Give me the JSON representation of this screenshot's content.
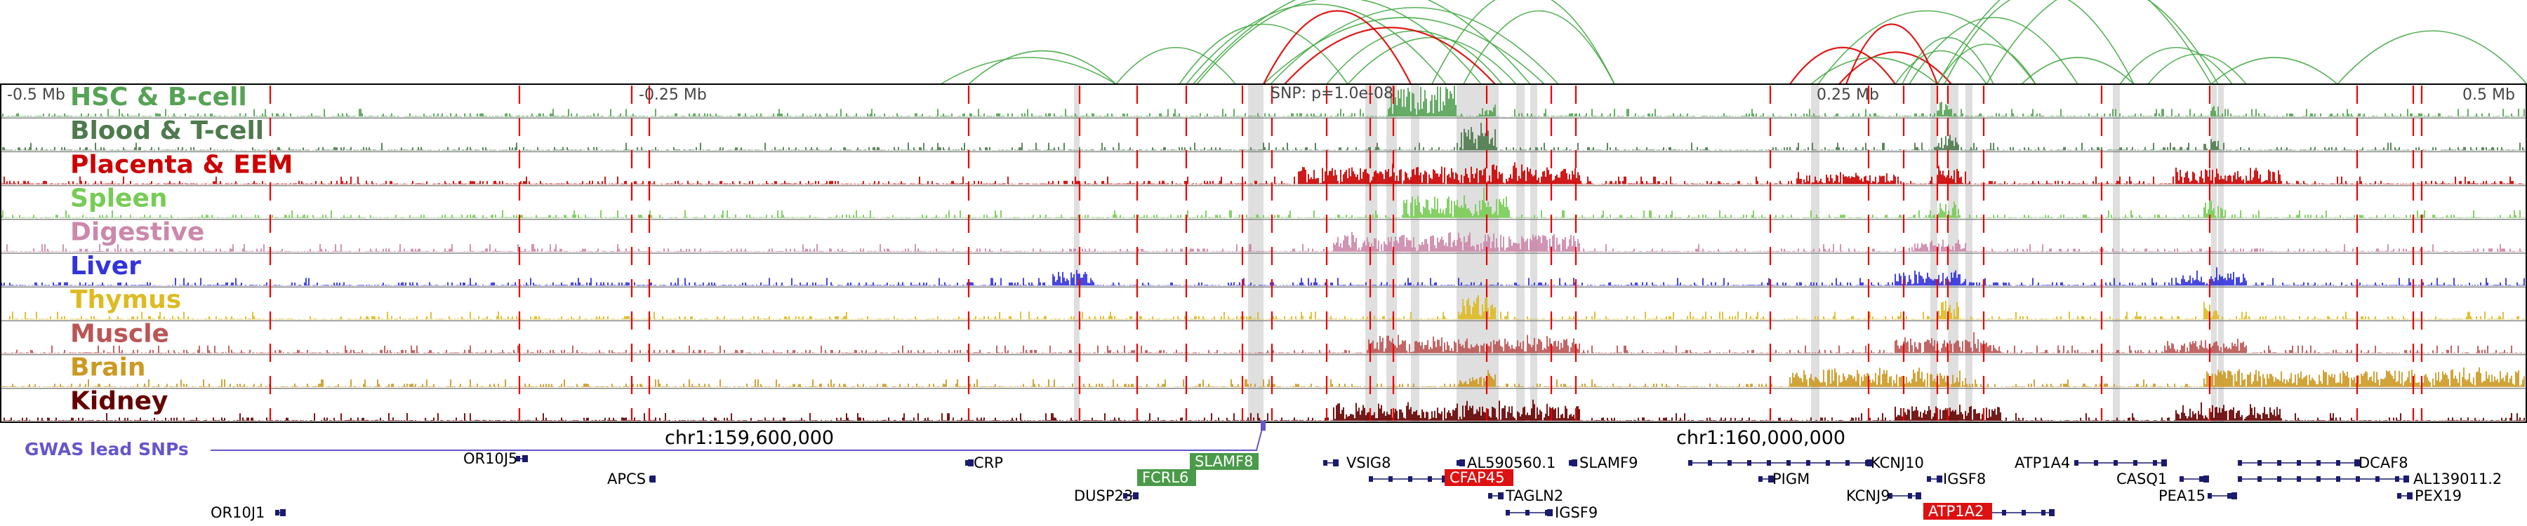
{
  "figure": {
    "scale_left": "-0.5 Mb",
    "scale_mid_left": "-0.25 Mb",
    "scale_mid_right": "0.25 Mb",
    "scale_right": "0.5 Mb",
    "snp_label": "SNP: p=1.0e-08",
    "gwas_label": "GWAS lead SNPs",
    "coord_left": "chr1:159,600,000",
    "coord_right": "chr1:160,000,000"
  },
  "tracks": [
    {
      "name": "HSC & B-cell",
      "color": "#55a355",
      "seed": 11,
      "hot": [
        [
          1980,
          2075,
          1.0
        ],
        [
          2110,
          2130,
          0.3
        ],
        [
          2760,
          2780,
          0.5
        ],
        [
          3150,
          3160,
          0.35
        ]
      ]
    },
    {
      "name": "Blood & T-cell",
      "color": "#4e7a4e",
      "seed": 23,
      "hot": [
        [
          2080,
          2130,
          0.9
        ],
        [
          2760,
          2790,
          0.6
        ],
        [
          3140,
          3160,
          0.3
        ]
      ]
    },
    {
      "name": "Placenta & EEM",
      "color": "#cc0000",
      "seed": 37,
      "hot": [
        [
          1850,
          2250,
          0.55
        ],
        [
          2560,
          2700,
          0.3
        ],
        [
          2760,
          2800,
          0.5
        ],
        [
          3100,
          3250,
          0.45
        ]
      ]
    },
    {
      "name": "Spleen",
      "color": "#77cc55",
      "seed": 41,
      "hot": [
        [
          2000,
          2150,
          0.75
        ],
        [
          2760,
          2790,
          0.55
        ],
        [
          3140,
          3170,
          0.6
        ]
      ]
    },
    {
      "name": "Digestive",
      "color": "#cc88aa",
      "seed": 53,
      "hot": [
        [
          1900,
          2250,
          0.55
        ],
        [
          2720,
          2800,
          0.3
        ]
      ]
    },
    {
      "name": "Liver",
      "color": "#3333dd",
      "seed": 67,
      "hot": [
        [
          1500,
          1560,
          0.45
        ],
        [
          2700,
          2800,
          0.45
        ],
        [
          3100,
          3200,
          0.4
        ]
      ]
    },
    {
      "name": "Thymus",
      "color": "#ddbb22",
      "seed": 71,
      "hot": [
        [
          2080,
          2130,
          0.9
        ],
        [
          2760,
          2790,
          0.6
        ],
        [
          3140,
          3160,
          0.5
        ]
      ]
    },
    {
      "name": "Muscle",
      "color": "#bb5555",
      "seed": 83,
      "hot": [
        [
          1950,
          2250,
          0.5
        ],
        [
          2700,
          2850,
          0.45
        ],
        [
          3080,
          3200,
          0.4
        ]
      ]
    },
    {
      "name": "Brain",
      "color": "#cc9922",
      "seed": 97,
      "hot": [
        [
          2550,
          2800,
          0.55
        ],
        [
          3140,
          3600,
          0.55
        ],
        [
          2080,
          2130,
          0.4
        ]
      ]
    },
    {
      "name": "Kidney",
      "color": "#660000",
      "seed": 101,
      "hot": [
        [
          1900,
          2250,
          0.5
        ],
        [
          2700,
          2850,
          0.45
        ],
        [
          3100,
          3250,
          0.45
        ]
      ]
    }
  ],
  "genes": [
    {
      "name": "OR10J5",
      "label_side": "right",
      "color": "#1a1a6e"
    },
    {
      "name": "APCS",
      "label_side": "left",
      "color": "#1a1a6e"
    },
    {
      "name": "OR10J1",
      "label_side": "left",
      "color": "#1a1a6e"
    },
    {
      "name": "CRP",
      "label_side": "right",
      "color": "#1a1a6e"
    },
    {
      "name": "DUSP23",
      "label_side": "left",
      "color": "#1a1a6e"
    },
    {
      "name": "FCRL6",
      "label_side": "box",
      "color": "#1a1a6e",
      "box_color": "#4a9a4a"
    },
    {
      "name": "SLAMF8",
      "label_side": "box",
      "color": "#1a1a6e",
      "box_color": "#4a9a4a"
    },
    {
      "name": "VSIG8",
      "label_side": "right",
      "color": "#1a1a6e"
    },
    {
      "name": "CFAP45",
      "label_side": "box",
      "color": "#1a1a6e",
      "box_color": "#dd1111"
    },
    {
      "name": "AL590560.1",
      "label_side": "right",
      "color": "#1a1a6e"
    },
    {
      "name": "TAGLN2",
      "label_side": "right",
      "color": "#1a1a6e"
    },
    {
      "name": "IGSF9",
      "label_side": "right",
      "color": "#1a1a6e"
    },
    {
      "name": "SLAMF9",
      "label_side": "right",
      "color": "#1a1a6e"
    },
    {
      "name": "KCNJ10",
      "label_side": "right",
      "color": "#1a1a6e"
    },
    {
      "name": "PIGM",
      "label_side": "right",
      "color": "#1a1a6e"
    },
    {
      "name": "IGSF8",
      "label_side": "right",
      "color": "#1a1a6e"
    },
    {
      "name": "KCNJ9",
      "label_side": "left",
      "color": "#1a1a6e"
    },
    {
      "name": "ATP1A2",
      "label_side": "box",
      "color": "#1a1a6e",
      "box_color": "#dd1111"
    },
    {
      "name": "ATP1A4",
      "label_side": "left",
      "color": "#1a1a6e"
    },
    {
      "name": "CASQ1",
      "label_side": "left",
      "color": "#1a1a6e"
    },
    {
      "name": "PEA15",
      "label_side": "left",
      "color": "#1a1a6e"
    },
    {
      "name": "DCAF8",
      "label_side": "right",
      "color": "#1a1a6e"
    },
    {
      "name": "AL139011.2",
      "label_side": "right",
      "color": "#1a1a6e"
    },
    {
      "name": "PEX19",
      "label_side": "right",
      "color": "#1a1a6e"
    }
  ],
  "colors": {
    "border": "#000000",
    "separator": "#888888",
    "red_line": "#ee0000",
    "highlight": "#d9d9d9",
    "gwas": "#6655cc",
    "loop_green": "#44aa44",
    "loop_red": "#dd0000",
    "gene": "#1a1a6e"
  }
}
